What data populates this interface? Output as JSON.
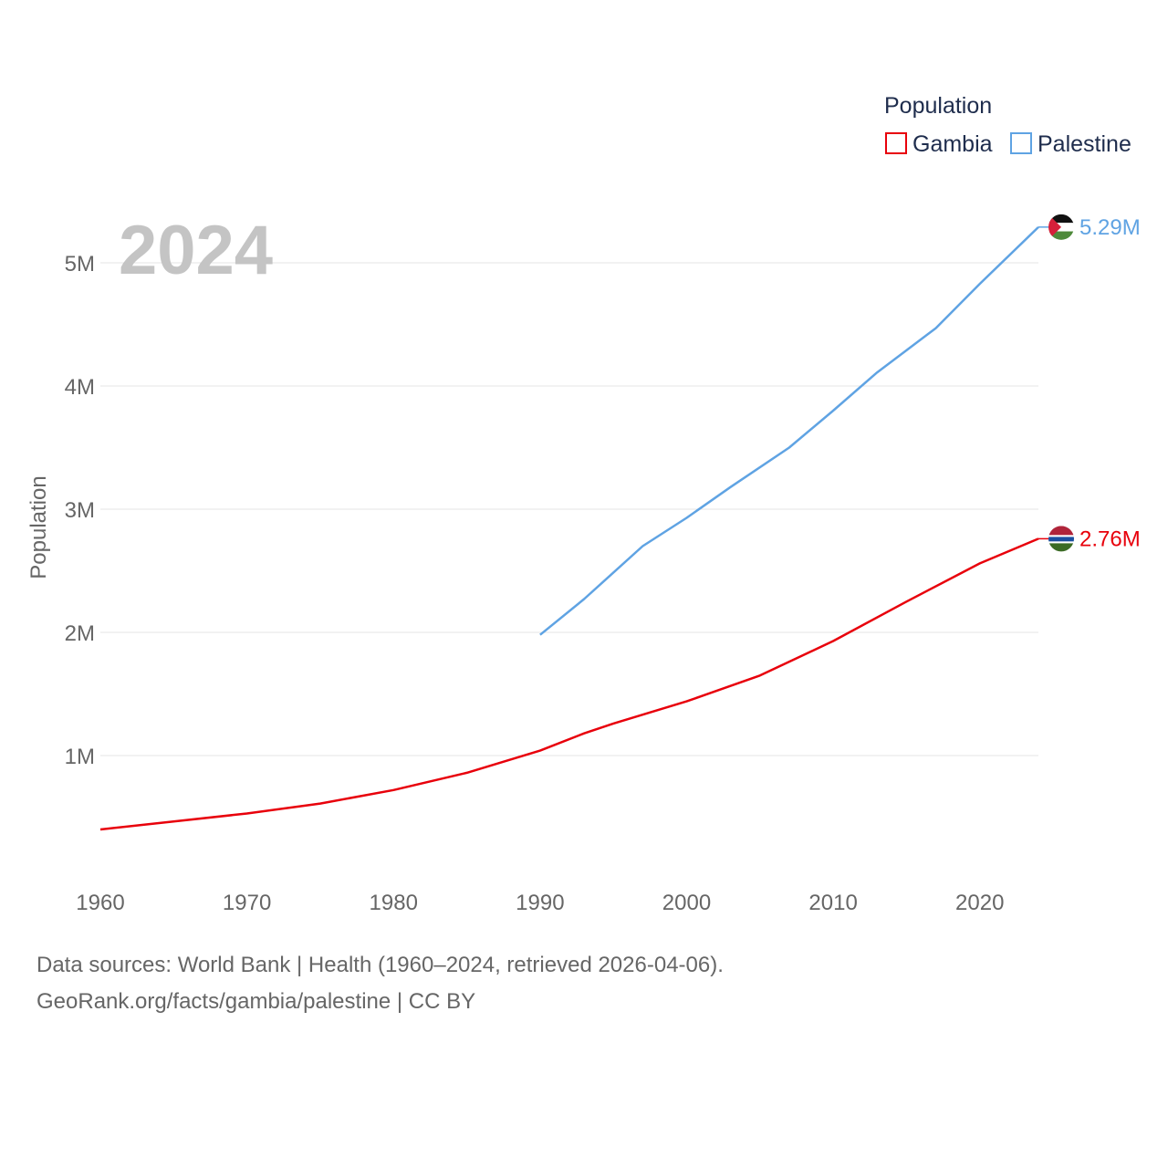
{
  "chart_data": {
    "type": "line",
    "title": "Population",
    "year_label": "2024",
    "xlabel": "",
    "ylabel": "Population",
    "xlim": [
      1960,
      2024
    ],
    "ylim": [
      0,
      5500000
    ],
    "x_ticks": [
      1960,
      1970,
      1980,
      1990,
      2000,
      2010,
      2020
    ],
    "y_ticks": [
      {
        "value": 1000000,
        "label": "1M"
      },
      {
        "value": 2000000,
        "label": "2M"
      },
      {
        "value": 3000000,
        "label": "3M"
      },
      {
        "value": 4000000,
        "label": "4M"
      },
      {
        "value": 5000000,
        "label": "5M"
      }
    ],
    "grid": true,
    "legend_position": "top-right",
    "series": [
      {
        "name": "Gambia",
        "color": "#e8000b",
        "end_label": "2.76M",
        "flag": "gambia-flag",
        "points": [
          [
            1960,
            400000
          ],
          [
            1965,
            465000
          ],
          [
            1970,
            530000
          ],
          [
            1975,
            610000
          ],
          [
            1980,
            720000
          ],
          [
            1985,
            860000
          ],
          [
            1990,
            1040000
          ],
          [
            1993,
            1180000
          ],
          [
            1995,
            1260000
          ],
          [
            2000,
            1440000
          ],
          [
            2005,
            1650000
          ],
          [
            2010,
            1930000
          ],
          [
            2015,
            2250000
          ],
          [
            2020,
            2560000
          ],
          [
            2024,
            2760000
          ]
        ]
      },
      {
        "name": "Palestine",
        "color": "#5fa3e3",
        "end_label": "5.29M",
        "flag": "palestine-flag",
        "points": [
          [
            1990,
            1980000
          ],
          [
            1993,
            2270000
          ],
          [
            1997,
            2700000
          ],
          [
            2000,
            2930000
          ],
          [
            2003,
            3180000
          ],
          [
            2007,
            3500000
          ],
          [
            2010,
            3800000
          ],
          [
            2013,
            4110000
          ],
          [
            2017,
            4470000
          ],
          [
            2020,
            4830000
          ],
          [
            2024,
            5290000
          ]
        ]
      }
    ]
  },
  "footer": {
    "sources": "Data sources: World Bank | Health (1960–2024, retrieved 2026-04-06).",
    "link": "GeoRank.org/facts/gambia/palestine | CC BY"
  }
}
